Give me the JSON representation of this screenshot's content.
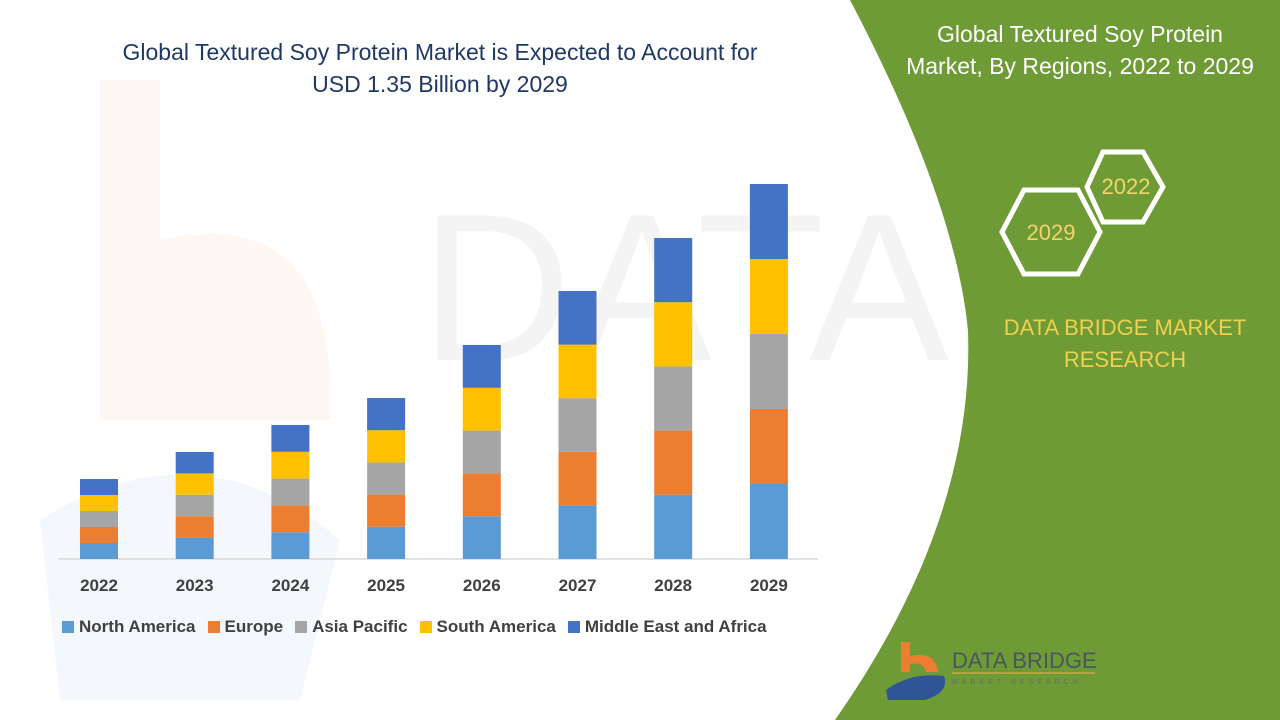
{
  "title_line1": "Global Textured Soy Protein Market is Expected to Account for",
  "title_line2": "USD 1.35 Billion by 2029",
  "side_panel": {
    "title_line1": "Global Textured Soy Protein",
    "title_line2": "Market, By Regions, 2022 to 2029",
    "hex_years": [
      "2022",
      "2029"
    ],
    "brand_line1": "DATA BRIDGE MARKET",
    "brand_line2": "RESEARCH",
    "logo_text": "DATA BRIDGE",
    "logo_subtext": "MARKET RESEARCH",
    "panel_color": "#6f9b37",
    "accent_color": "#f0cf4c"
  },
  "chart_data": {
    "type": "bar",
    "stacked": true,
    "title": "Global Textured Soy Protein Market is Expected to Account for USD 1.35 Billion by 2029",
    "categories": [
      "2022",
      "2023",
      "2024",
      "2025",
      "2026",
      "2027",
      "2028",
      "2029"
    ],
    "series": [
      {
        "name": "North America",
        "color": "#5b9bd5",
        "values": [
          16,
          21.4,
          26.8,
          32.2,
          42.8,
          53.6,
          64.2,
          75
        ]
      },
      {
        "name": "Europe",
        "color": "#ed7d31",
        "values": [
          16,
          21.4,
          26.8,
          32.2,
          42.8,
          53.6,
          64.2,
          75
        ]
      },
      {
        "name": "Asia Pacific",
        "color": "#a5a5a5",
        "values": [
          16,
          21.4,
          26.8,
          32.2,
          42.8,
          53.6,
          64.2,
          75
        ]
      },
      {
        "name": "South America",
        "color": "#ffc000",
        "values": [
          16,
          21.4,
          26.8,
          32.2,
          42.8,
          53.6,
          64.2,
          75
        ]
      },
      {
        "name": "Middle East and Africa",
        "color": "#4472c4",
        "values": [
          16,
          21.4,
          26.8,
          32.2,
          42.8,
          53.6,
          64.2,
          75
        ]
      }
    ],
    "ylim": [
      0,
      375
    ],
    "y_axis_shown": false,
    "grid": false,
    "legend_position": "bottom"
  }
}
